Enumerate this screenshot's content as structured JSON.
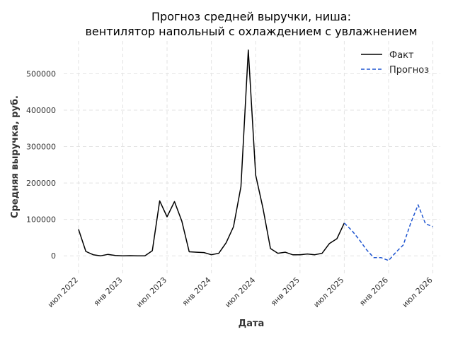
{
  "chart_data": {
    "type": "line",
    "title_lines": [
      "Прогноз средней выручки, ниша:",
      "вентилятор напольный с охлаждением с увлажнением"
    ],
    "xlabel": "Дата",
    "ylabel": "Средняя выручка, руб.",
    "x_ticks": [
      {
        "label": "июл 2022",
        "month": "2022-07"
      },
      {
        "label": "янв 2023",
        "month": "2023-01"
      },
      {
        "label": "июл 2023",
        "month": "2023-07"
      },
      {
        "label": "янв 2024",
        "month": "2024-01"
      },
      {
        "label": "июл 2024",
        "month": "2024-07"
      },
      {
        "label": "янв 2025",
        "month": "2025-01"
      },
      {
        "label": "июл 2025",
        "month": "2025-07"
      },
      {
        "label": "янв 2026",
        "month": "2026-01"
      },
      {
        "label": "июл 2026",
        "month": "2026-07"
      }
    ],
    "y_ticks": [
      "0",
      "100000",
      "200000",
      "300000",
      "400000",
      "500000"
    ],
    "y_tick_values": [
      0,
      100000,
      200000,
      300000,
      400000,
      500000
    ],
    "xlim": [
      "2022-05",
      "2026-08"
    ],
    "ylim": [
      -50000,
      590000
    ],
    "grid": true,
    "legend_position": "top-right",
    "series": [
      {
        "name": "Факт",
        "style": "solid",
        "color": "#000000",
        "x": [
          "2022-07",
          "2022-08",
          "2022-09",
          "2022-10",
          "2022-11",
          "2022-12",
          "2023-01",
          "2023-02",
          "2023-03",
          "2023-04",
          "2023-05",
          "2023-06",
          "2023-07",
          "2023-08",
          "2023-09",
          "2023-10",
          "2023-11",
          "2023-12",
          "2024-01",
          "2024-02",
          "2024-03",
          "2024-04",
          "2024-05",
          "2024-06",
          "2024-07",
          "2024-08",
          "2024-09",
          "2024-10",
          "2024-11",
          "2024-12",
          "2025-01",
          "2025-02",
          "2025-03",
          "2025-04",
          "2025-05",
          "2025-06",
          "2025-07"
        ],
        "y": [
          73000,
          12000,
          3000,
          0,
          4000,
          1000,
          0,
          500,
          0,
          0,
          14000,
          151000,
          107000,
          149000,
          95000,
          11000,
          10000,
          9000,
          3000,
          7000,
          36000,
          80000,
          190000,
          565000,
          222000,
          130000,
          20000,
          7000,
          10000,
          3000,
          3000,
          5000,
          3000,
          7000,
          34000,
          47000,
          90000
        ]
      },
      {
        "name": "Прогноз",
        "style": "dashed",
        "color": "#1f55d0",
        "x": [
          "2025-07",
          "2025-08",
          "2025-09",
          "2025-10",
          "2025-11",
          "2025-12",
          "2026-01",
          "2026-02",
          "2026-03",
          "2026-04",
          "2026-05",
          "2026-06",
          "2026-07"
        ],
        "y": [
          90000,
          70000,
          45000,
          17000,
          -5000,
          -5000,
          -13000,
          10000,
          30000,
          90000,
          140000,
          88000,
          80000
        ]
      }
    ]
  }
}
